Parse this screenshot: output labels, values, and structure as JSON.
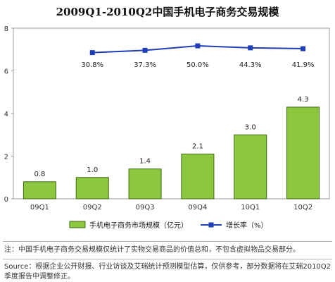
{
  "chart_data": {
    "type": "bar",
    "title": "2009Q1-2010Q2中国手机电子商务交易规模",
    "categories": [
      "09Q1",
      "09Q2",
      "09Q3",
      "09Q4",
      "10Q1",
      "10Q2"
    ],
    "series": [
      {
        "name": "手机电子商务市场规模（亿元）",
        "type": "bar",
        "color": "#8dc63f",
        "values": [
          0.8,
          1.0,
          1.4,
          2.1,
          3.0,
          4.3
        ],
        "labels": [
          "0.8",
          "1.0",
          "1.4",
          "2.1",
          "3.0",
          "4.3"
        ]
      },
      {
        "name": "增长率（%）",
        "type": "line",
        "color": "#1f3fb8",
        "x": [
          "09Q2",
          "09Q3",
          "09Q4",
          "10Q1",
          "10Q2"
        ],
        "values": [
          30.8,
          37.3,
          50.0,
          44.3,
          41.9
        ],
        "labels": [
          "30.8%",
          "37.3%",
          "50.0%",
          "44.3%",
          "41.9%"
        ]
      }
    ],
    "yticks": [
      "0",
      "2",
      "4",
      "6",
      "8"
    ],
    "ylim": [
      0,
      8
    ],
    "grid": false,
    "legend_position": "bottom"
  },
  "footer": {
    "note": "注：中国手机电子商务交易规模仅统计了实物交易商品的价值总和，不包含虚拟物品交易部分。",
    "source": "Source：根据企业公开财报、行业访谈及艾瑞统计预测模型估算，仅供参考，部分数据将在艾瑞2010Q2季度报告中调整修正。"
  }
}
